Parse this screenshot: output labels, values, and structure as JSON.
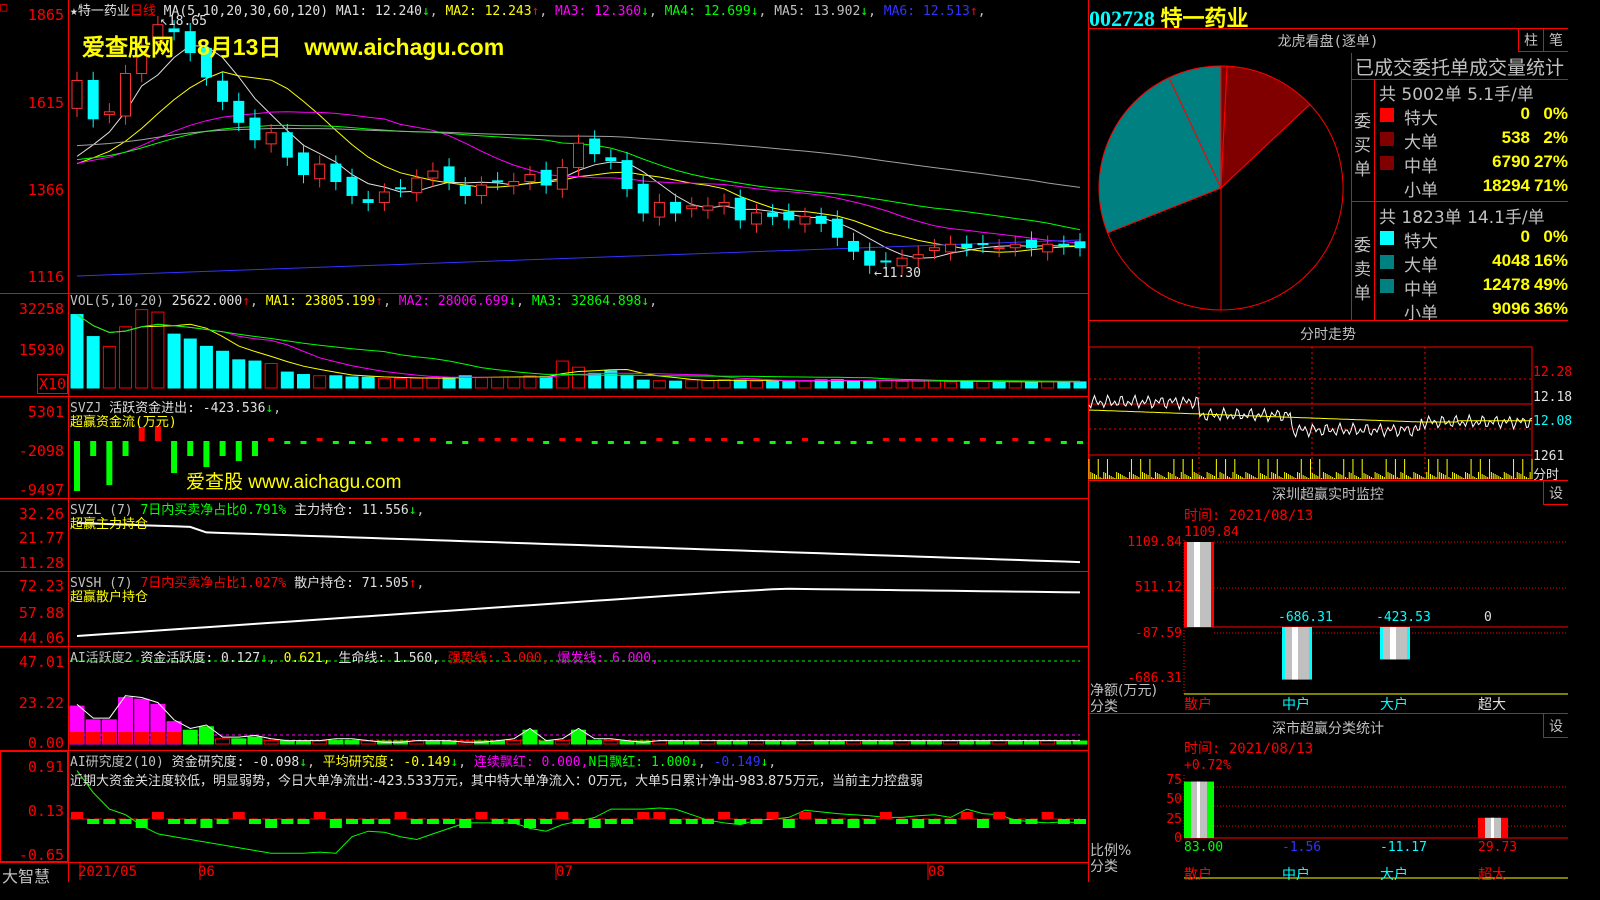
{
  "stock": {
    "code": "002728",
    "name": "特一药业"
  },
  "main": {
    "title": "★特一药业",
    "period": "日线",
    "ma_label": "MA(5,10,20,30,60,120)",
    "ma": [
      {
        "t": "MA1: 12.240",
        "a": "↓",
        "c": "#e0e0e0"
      },
      {
        "t": "MA2: 12.243",
        "a": "↑",
        "c": "#ffff00"
      },
      {
        "t": "MA3: 12.360",
        "a": "↓",
        "c": "#ff00ff"
      },
      {
        "t": "MA4: 12.699",
        "a": "↓",
        "c": "#00ff00"
      },
      {
        "t": "MA5: 13.902",
        "a": "↓",
        "c": "#c0c0c0"
      },
      {
        "t": "MA6: 12.513",
        "a": "↑",
        "c": "#3333ff"
      }
    ],
    "watermark": "爱查股网　8月13日　www.aichagu.com",
    "axis": [
      "1865",
      "1615",
      "1366",
      "1116"
    ],
    "high_mark": "18.65",
    "low_mark": "11.30",
    "closes": [
      16.8,
      15.7,
      15.9,
      17.0,
      17.8,
      18.4,
      18.2,
      17.6,
      16.9,
      16.2,
      15.6,
      15.1,
      15.3,
      14.6,
      14.1,
      14.4,
      13.9,
      13.5,
      13.3,
      13.6,
      13.7,
      14.0,
      14.2,
      13.9,
      13.5,
      13.8,
      13.9,
      13.9,
      14.1,
      13.8,
      14.3,
      15.0,
      14.7,
      14.5,
      13.7,
      13.0,
      13.3,
      13.0,
      13.2,
      13.2,
      13.3,
      12.8,
      13.0,
      12.9,
      12.8,
      12.9,
      12.7,
      12.3,
      11.9,
      11.5,
      11.6,
      11.7,
      11.8,
      12.0,
      12.1,
      12.0,
      12.1,
      12.0,
      12.1,
      12.0,
      12.1,
      12.05,
      12.0
    ]
  },
  "vol": {
    "label": "VOL(5,10,20)",
    "value": "25622.000",
    "ma": [
      {
        "t": "MA1: 23805.199",
        "a": "↑",
        "c": "#ffff00"
      },
      {
        "t": "MA2: 28006.699",
        "a": "↓",
        "c": "#ff00ff"
      },
      {
        "t": "MA3: 32864.898",
        "a": "↓",
        "c": "#00ff00"
      }
    ],
    "axis": [
      "32258",
      "15930"
    ],
    "unit": "X10",
    "values": [
      30000,
      21000,
      17000,
      25000,
      32000,
      31000,
      22000,
      20000,
      17000,
      15000,
      11500,
      11000,
      10000,
      6500,
      5500,
      5000,
      5000,
      4500,
      4400,
      3800,
      3900,
      4000,
      4200,
      4300,
      5000,
      4200,
      4400,
      4500,
      5000,
      4600,
      11000,
      8500,
      6000,
      7000,
      5200,
      3200,
      3000,
      2800,
      3300,
      3000,
      3500,
      3200,
      2800,
      3000,
      2600,
      2900,
      3300,
      3400,
      3000,
      2900,
      3100,
      2700,
      2800,
      2900,
      2500,
      2700,
      2600,
      2400,
      2600,
      2500,
      2700,
      2400,
      2500
    ]
  },
  "svzj": {
    "label": "SVZJ",
    "desc": "活跃资金进出: -423.536",
    "arrow": "↓",
    "sub": "超赢资金流(万元)",
    "axis": [
      "5301",
      "-2098",
      "-9497"
    ],
    "watermark": "爱查股 www.aichagu.com"
  },
  "svzl": {
    "label": "SVZL (7)",
    "ratio": "7日内买卖净占比0.791%",
    "hold": "主力持仓: 11.556",
    "arrow": "↓",
    "sub": "超赢主力持仓",
    "axis": [
      "32.26",
      "21.77",
      "11.28"
    ]
  },
  "svsh": {
    "label": "SVSH (7)",
    "ratio": "7日内买卖净占比1.027%",
    "hold": "散户持仓: 71.505",
    "arrow": "↑",
    "sub": "超赢散户持仓",
    "axis": [
      "72.23",
      "57.88",
      "44.06"
    ]
  },
  "ai1": {
    "label": "AI活跃度2",
    "a": "资金活跃度: 0.127",
    "b": "0.621,",
    "c": "生命线: 1.560,",
    "d": "强势线: 3.000,",
    "e": "爆发线: 6.000,",
    "axis": [
      "47.01",
      "23.22",
      "0.00"
    ]
  },
  "ai2": {
    "label": "AI研究度2(10)",
    "a": "资金研究度: -0.098",
    "b": "平均研究度: -0.149",
    "c": "连续飘红: 0.000,",
    "d": "N日飘红: 1.000",
    "e": "-0.149",
    "axis": [
      "0.91",
      "0.13",
      "-0.65"
    ],
    "comment": "近期大资金关注度较低，明显弱势，今日大单净流出:-423.533万元，其中特大单净流入：0万元，大单5日累计净出-983.875万元，当前主力控盘弱"
  },
  "dates": {
    "corner": "大智慧",
    "labels": [
      "2021/05",
      "06",
      "07",
      "08"
    ]
  },
  "lhkp": {
    "title": "龙虎看盘(逐单)",
    "tabs": [
      "柱",
      "笔"
    ],
    "stats_title": "已成交委托单成交量统计",
    "buy": {
      "side": "委买单",
      "summary": "共 5002单 5.1手/单",
      "rows": [
        {
          "n": "特大",
          "v": "0",
          "p": "0%",
          "c": "#ff0000"
        },
        {
          "n": "大单",
          "v": "538",
          "p": "2%",
          "c": "#800000"
        },
        {
          "n": "中单",
          "v": "6790",
          "p": "27%",
          "c": "#800000"
        },
        {
          "n": "小单",
          "v": "18294",
          "p": "71%",
          "c": ""
        }
      ]
    },
    "sell": {
      "side": "委卖单",
      "summary": "共 1823单 14.1手/单",
      "rows": [
        {
          "n": "特大",
          "v": "0",
          "p": "0%",
          "c": "#00ffff"
        },
        {
          "n": "大单",
          "v": "4048",
          "p": "16%",
          "c": "#008080"
        },
        {
          "n": "中单",
          "v": "12478",
          "p": "49%",
          "c": "#008080"
        },
        {
          "n": "小单",
          "v": "9096",
          "p": "36%",
          "c": ""
        }
      ]
    }
  },
  "fs": {
    "title": "分时走势",
    "axis": [
      "12.28",
      "12.18",
      "12.08",
      "1261",
      "分时"
    ]
  },
  "szjk": {
    "title": "深圳超赢实时监控",
    "settings": "设",
    "time": "时间: 2021/08/13",
    "top": "1109.84",
    "axis": [
      "1109.84",
      "511.12",
      "-87.59",
      "-686.31"
    ],
    "ylabel": "净额(万元)",
    "xlabel": "分类",
    "bars": [
      {
        "cat": "散户",
        "val": 1109.84,
        "label": "",
        "cc": "#ff0000"
      },
      {
        "cat": "中户",
        "val": -686.31,
        "label": "-686.31",
        "cc": "#00ffff"
      },
      {
        "cat": "大户",
        "val": -423.53,
        "label": "-423.53",
        "cc": "#00ffff"
      },
      {
        "cat": "超大",
        "val": 0,
        "label": "0",
        "cc": "#e0e0e0"
      }
    ]
  },
  "ssfl": {
    "title": "深市超赢分类统计",
    "settings": "设",
    "time": "时间: 2021/08/13",
    "top": "+0.72%",
    "axis": [
      "75",
      "50",
      "25",
      "0"
    ],
    "ylabel": "比例%",
    "xlabel": "分类",
    "bars": [
      {
        "cat": "散户",
        "val": 83.0,
        "label": "83.00",
        "lc": "#00ff00",
        "cc": "#ff0000",
        "edge": "#00ff00"
      },
      {
        "cat": "中户",
        "val": -1.56,
        "label": "-1.56",
        "lc": "#3333ff",
        "cc": "#00ffff",
        "edge": ""
      },
      {
        "cat": "大户",
        "val": -11.17,
        "label": "-11.17",
        "lc": "#00ffff",
        "cc": "#00ffff",
        "edge": ""
      },
      {
        "cat": "超大",
        "val": 29.73,
        "label": "29.73",
        "lc": "#ff0000",
        "cc": "#ff0000",
        "edge": "#ff0000"
      }
    ]
  }
}
